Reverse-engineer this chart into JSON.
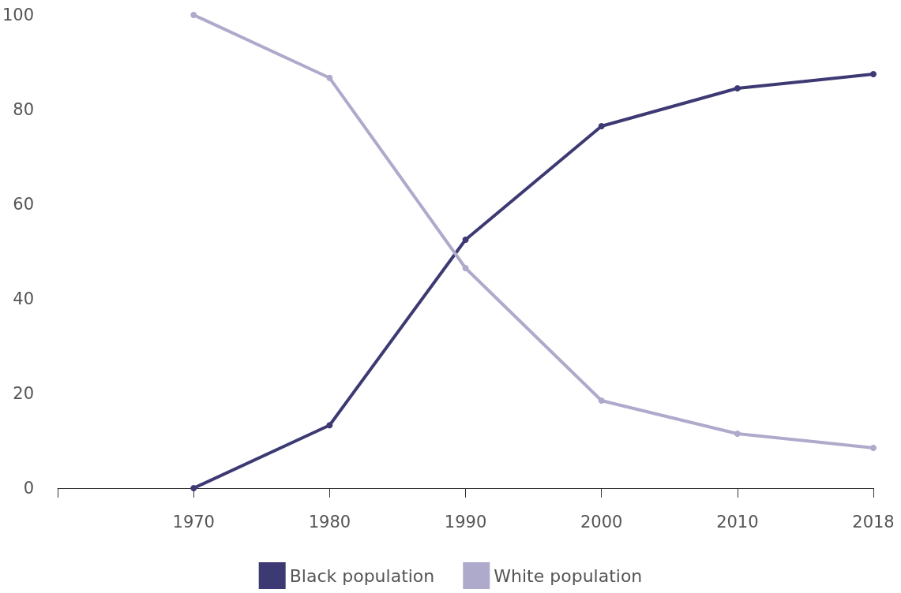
{
  "chart_data": {
    "type": "line",
    "categories": [
      null,
      "1970",
      "1980",
      "1990",
      "2000",
      "2010",
      "2018"
    ],
    "series": [
      {
        "name": "Black population",
        "color": "#3d3a73",
        "values": [
          null,
          0,
          13.3,
          52.5,
          76.5,
          84.5,
          87.5
        ]
      },
      {
        "name": "White population",
        "color": "#aeaacb",
        "values": [
          null,
          100,
          86.7,
          46.5,
          18.5,
          11.5,
          8.5
        ]
      }
    ],
    "ylim": [
      0,
      100
    ],
    "yticks": [
      0,
      20,
      40,
      60,
      80,
      100
    ],
    "grid": false,
    "legend": "bottom",
    "marker": "circle",
    "line_style": "solid"
  }
}
